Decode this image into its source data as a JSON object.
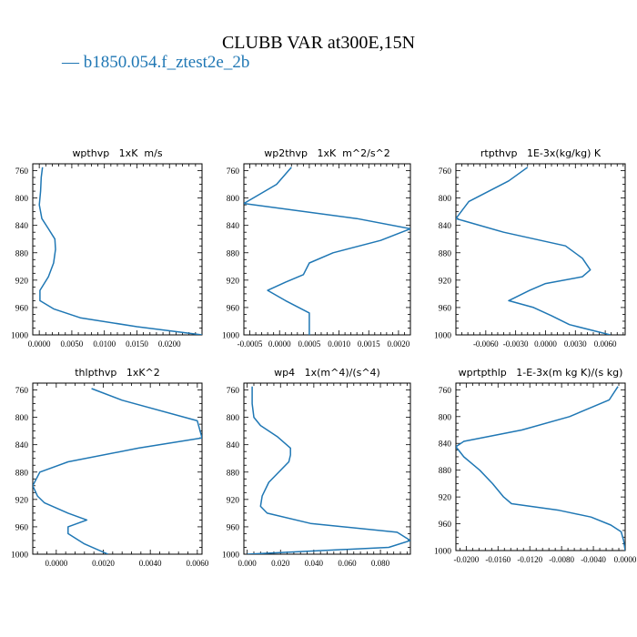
{
  "title": "CLUBB VAR at300E,15N",
  "legend": {
    "marker": "—",
    "label": "b1850.054.f_ztest2e_2b",
    "color": "#1f77b4"
  },
  "chart_data": [
    {
      "type": "line",
      "title": "wpthvp   1xK  m/s",
      "xlim": [
        -0.001,
        0.025
      ],
      "ylim": [
        1000,
        750
      ],
      "xticks": [
        0.0,
        0.005,
        0.01,
        0.015,
        0.02
      ],
      "xtick_labels": [
        "0.0000",
        "0.0050",
        "0.0100",
        "0.0150",
        "0.0200"
      ],
      "yticks": [
        760,
        800,
        840,
        880,
        920,
        960,
        1000
      ],
      "ytick_labels": [
        "760",
        "800",
        "840",
        "880",
        "920",
        "960",
        "1000"
      ],
      "series": [
        {
          "x": [
            0.0005,
            0.0003,
            0.0002,
            0.0,
            0.0004,
            0.0014,
            0.0024,
            0.0025,
            0.0022,
            0.0014,
            0.0001,
            0.0001,
            0.0022,
            0.0063,
            0.015,
            0.025
          ],
          "y": [
            755,
            770,
            790,
            810,
            830,
            845,
            860,
            875,
            895,
            915,
            935,
            950,
            962,
            975,
            988,
            1000
          ]
        }
      ]
    },
    {
      "type": "line",
      "title": "wp2thvp   1xK  m^2/s^2",
      "xlim": [
        -0.0006,
        0.0022
      ],
      "ylim": [
        1000,
        750
      ],
      "xticks": [
        -0.0005,
        0.0,
        0.0005,
        0.001,
        0.0015,
        0.002
      ],
      "xtick_labels": [
        "-0.0005",
        "0.0000",
        "0.0005",
        "0.0010",
        "0.0015",
        "0.0020"
      ],
      "yticks": [
        760,
        800,
        840,
        880,
        920,
        960,
        1000
      ],
      "ytick_labels": [
        "760",
        "800",
        "840",
        "880",
        "920",
        "960",
        "1000"
      ],
      "series": [
        {
          "x": [
            0.0002,
            -5e-05,
            -0.0006,
            0.0013,
            0.0022,
            0.0017,
            0.0009,
            0.0005,
            0.0004,
            0.0001,
            -0.0002,
            0.0001,
            0.0005,
            0.0005,
            0.0005
          ],
          "y": [
            755,
            780,
            808,
            830,
            845,
            862,
            880,
            895,
            912,
            923,
            935,
            950,
            968,
            985,
            1000
          ]
        }
      ]
    },
    {
      "type": "line",
      "title": "rtpthvp   1E-3x(kg/kg) K",
      "xlim": [
        -0.009,
        0.008
      ],
      "ylim": [
        1000,
        750
      ],
      "xticks": [
        -0.006,
        -0.003,
        0.0,
        0.003,
        0.006
      ],
      "xtick_labels": [
        "-0.0060",
        "-0.0030",
        "0.0000",
        "0.0030",
        "0.0060"
      ],
      "yticks": [
        760,
        800,
        840,
        880,
        920,
        960,
        1000
      ],
      "ytick_labels": [
        "760",
        "800",
        "840",
        "880",
        "920",
        "960",
        "1000"
      ],
      "series": [
        {
          "x": [
            -0.0018,
            -0.0037,
            -0.0077,
            -0.009,
            -0.0042,
            0.002,
            0.0037,
            0.0045,
            0.0037,
            0.0,
            -0.0016,
            -0.0037,
            -0.0012,
            0.0006,
            0.0024,
            0.0065
          ],
          "y": [
            755,
            775,
            805,
            830,
            850,
            870,
            888,
            905,
            915,
            925,
            935,
            950,
            960,
            972,
            985,
            1000
          ]
        }
      ]
    },
    {
      "type": "line",
      "title": "thlpthvp   1xK^2",
      "xlim": [
        -0.001,
        0.0062
      ],
      "ylim": [
        1000,
        750
      ],
      "xticks": [
        0.0,
        0.002,
        0.004,
        0.006
      ],
      "xtick_labels": [
        "0.0000",
        "0.0020",
        "0.0040",
        "0.0060"
      ],
      "yticks": [
        760,
        800,
        840,
        880,
        920,
        960,
        1000
      ],
      "ytick_labels": [
        "760",
        "800",
        "840",
        "880",
        "920",
        "960",
        "1000"
      ],
      "series": [
        {
          "x": [
            0.0015,
            0.0028,
            0.006,
            0.0062,
            0.0035,
            0.0005,
            -0.0007,
            -0.001,
            -0.0008,
            -0.0005,
            0.0005,
            0.0013,
            0.0005,
            0.0005,
            0.0012,
            0.0022
          ],
          "y": [
            758,
            775,
            805,
            830,
            845,
            865,
            880,
            900,
            915,
            925,
            940,
            950,
            960,
            970,
            985,
            1000
          ]
        }
      ]
    },
    {
      "type": "line",
      "title": "wp4   1x(m^4)/(s^4)",
      "xlim": [
        -0.002,
        0.098
      ],
      "ylim": [
        1000,
        750
      ],
      "xticks": [
        0.0,
        0.02,
        0.04,
        0.06,
        0.08
      ],
      "xtick_labels": [
        "0.000",
        "0.020",
        "0.040",
        "0.060",
        "0.080"
      ],
      "yticks": [
        760,
        800,
        840,
        880,
        920,
        960,
        1000
      ],
      "ytick_labels": [
        "760",
        "800",
        "840",
        "880",
        "920",
        "960",
        "1000"
      ],
      "series": [
        {
          "x": [
            0.003,
            0.003,
            0.004,
            0.008,
            0.018,
            0.026,
            0.026,
            0.025,
            0.013,
            0.009,
            0.008,
            0.012,
            0.038,
            0.09,
            0.098,
            0.085,
            0.0
          ],
          "y": [
            755,
            780,
            800,
            812,
            828,
            845,
            855,
            865,
            895,
            915,
            930,
            940,
            955,
            968,
            980,
            990,
            1000
          ]
        }
      ]
    },
    {
      "type": "line",
      "title": "wprtpthlp   1-E-3x(m kg K)/(s kg)",
      "xlim": [
        -0.0213,
        0.0
      ],
      "ylim": [
        1000,
        750
      ],
      "xticks": [
        -0.02,
        -0.016,
        -0.012,
        -0.008,
        -0.004,
        0.0
      ],
      "xtick_labels": [
        "-0.0200",
        "-0.0160",
        "-0.0120",
        "-0.0080",
        "-0.0040",
        "0.0000"
      ],
      "yticks": [
        760,
        800,
        840,
        880,
        920,
        960,
        1000
      ],
      "ytick_labels": [
        "760",
        "800",
        "840",
        "880",
        "920",
        "960",
        "1000"
      ],
      "series": [
        {
          "x": [
            -0.0009,
            -0.002,
            -0.007,
            -0.013,
            -0.0203,
            -0.0213,
            -0.0203,
            -0.0183,
            -0.0167,
            -0.0153,
            -0.0143,
            -0.0083,
            -0.0043,
            -0.0018,
            -0.0005,
            -0.0002,
            0.0
          ],
          "y": [
            755,
            775,
            800,
            820,
            837,
            845,
            860,
            880,
            900,
            920,
            930,
            940,
            950,
            962,
            972,
            985,
            1000
          ]
        }
      ]
    }
  ]
}
